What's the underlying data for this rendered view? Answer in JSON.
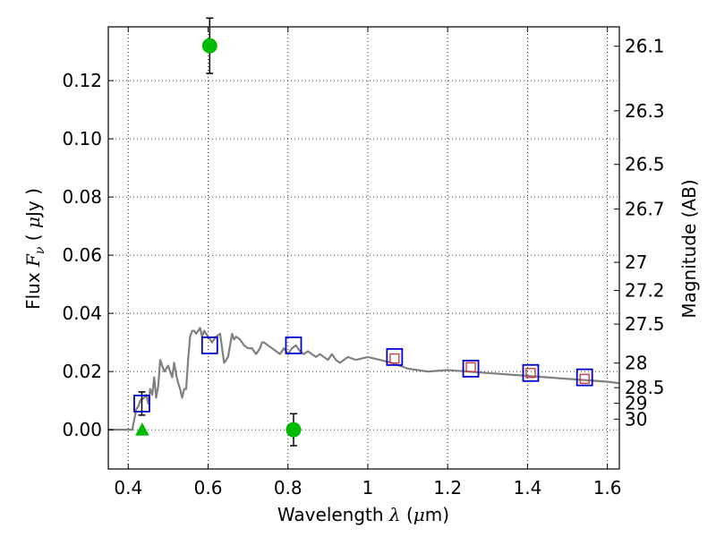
{
  "chart_data": {
    "type": "scatter",
    "xlabel": {
      "pre": "Wavelength  ",
      "sym": "λ",
      "post": " (",
      "mu": "μ",
      "unit": "m)"
    },
    "ylabel": {
      "pre": "Flux  ",
      "sym": "F",
      "sub": "ν",
      "mid": "  ( ",
      "mu": "μ",
      "unit": "Jy )"
    },
    "y2label": "Magnitude (AB)",
    "xlim": [
      0.35,
      1.63
    ],
    "ylim": [
      -0.0135,
      0.1385
    ],
    "xticks": [
      {
        "value": 0.4,
        "label": "0.4"
      },
      {
        "value": 0.6,
        "label": "0.6"
      },
      {
        "value": 0.8,
        "label": "0.8"
      },
      {
        "value": 1.0,
        "label": "1"
      },
      {
        "value": 1.2,
        "label": "1.2"
      },
      {
        "value": 1.4,
        "label": "1.4"
      },
      {
        "value": 1.6,
        "label": "1.6"
      }
    ],
    "yticks": [
      {
        "value": 0.0,
        "label": "0.00"
      },
      {
        "value": 0.02,
        "label": "0.02"
      },
      {
        "value": 0.04,
        "label": "0.04"
      },
      {
        "value": 0.06,
        "label": "0.06"
      },
      {
        "value": 0.08,
        "label": "0.08"
      },
      {
        "value": 0.1,
        "label": "0.10"
      },
      {
        "value": 0.12,
        "label": "0.12"
      }
    ],
    "magnitude_ticks": [
      "26.1",
      "26.3",
      "26.5",
      "26.7",
      "27",
      "27.2",
      "27.5",
      "28",
      "28.5",
      "29",
      "30"
    ],
    "grid": true,
    "colors": {
      "model": "#808080",
      "observed": "#00bb00",
      "model_photometry": "#0000cc",
      "secondary_photometry": "#cc3333",
      "error_bar": "#000000"
    },
    "series": [
      {
        "kind": "line",
        "x": [
          0.35,
          0.41,
          0.42,
          0.425,
          0.43,
          0.44,
          0.445,
          0.45,
          0.455,
          0.46,
          0.465,
          0.47,
          0.475,
          0.48,
          0.49,
          0.5,
          0.51,
          0.515,
          0.52,
          0.525,
          0.53,
          0.535,
          0.54,
          0.545,
          0.55,
          0.555,
          0.56,
          0.565,
          0.57,
          0.575,
          0.58,
          0.585,
          0.59,
          0.595,
          0.6,
          0.605,
          0.61,
          0.62,
          0.63,
          0.64,
          0.65,
          0.66,
          0.665,
          0.67,
          0.68,
          0.69,
          0.7,
          0.71,
          0.72,
          0.73,
          0.735,
          0.74,
          0.75,
          0.76,
          0.77,
          0.78,
          0.79,
          0.8,
          0.81,
          0.82,
          0.83,
          0.84,
          0.85,
          0.86,
          0.87,
          0.88,
          0.89,
          0.9,
          0.91,
          0.92,
          0.93,
          0.95,
          0.97,
          1.0,
          1.03,
          1.06,
          1.1,
          1.15,
          1.2,
          1.25,
          1.3,
          1.35,
          1.4,
          1.45,
          1.5,
          1.55,
          1.6,
          1.63
        ],
        "y": [
          0.0,
          0.0,
          0.007,
          0.008,
          0.01,
          0.011,
          0.012,
          0.009,
          0.014,
          0.012,
          0.018,
          0.011,
          0.015,
          0.024,
          0.02,
          0.022,
          0.018,
          0.023,
          0.019,
          0.016,
          0.014,
          0.011,
          0.014,
          0.014,
          0.024,
          0.032,
          0.034,
          0.034,
          0.033,
          0.034,
          0.035,
          0.032,
          0.034,
          0.033,
          0.032,
          0.031,
          0.03,
          0.032,
          0.033,
          0.023,
          0.025,
          0.033,
          0.031,
          0.032,
          0.031,
          0.029,
          0.028,
          0.028,
          0.026,
          0.028,
          0.03,
          0.03,
          0.029,
          0.028,
          0.027,
          0.026,
          0.028,
          0.026,
          0.028,
          0.029,
          0.027,
          0.026,
          0.027,
          0.026,
          0.025,
          0.026,
          0.025,
          0.024,
          0.026,
          0.024,
          0.023,
          0.025,
          0.024,
          0.025,
          0.024,
          0.023,
          0.021,
          0.02,
          0.0205,
          0.02,
          0.0195,
          0.019,
          0.0185,
          0.018,
          0.0175,
          0.017,
          0.0165,
          0.016
        ]
      },
      {
        "kind": "points",
        "marker": "circle",
        "points": [
          {
            "x": 0.604,
            "y": 0.132,
            "err": 0.0095
          },
          {
            "x": 0.814,
            "y": 0.0,
            "err": 0.0055
          }
        ]
      },
      {
        "kind": "points",
        "marker": "triangle",
        "points": [
          {
            "x": 0.435,
            "y": 0.0
          }
        ]
      },
      {
        "kind": "points",
        "marker": "square",
        "points": [
          {
            "x": 0.434,
            "y": 0.009,
            "err": 0.004
          },
          {
            "x": 0.604,
            "y": 0.029
          },
          {
            "x": 0.814,
            "y": 0.029
          },
          {
            "x": 1.067,
            "y": 0.025
          },
          {
            "x": 1.258,
            "y": 0.021
          },
          {
            "x": 1.408,
            "y": 0.0195
          },
          {
            "x": 1.543,
            "y": 0.018
          }
        ]
      },
      {
        "kind": "points",
        "marker": "small-square",
        "points": [
          {
            "x": 1.067,
            "y": 0.0245
          },
          {
            "x": 1.258,
            "y": 0.0215
          },
          {
            "x": 1.408,
            "y": 0.0195
          },
          {
            "x": 1.543,
            "y": 0.0175
          }
        ]
      }
    ]
  }
}
